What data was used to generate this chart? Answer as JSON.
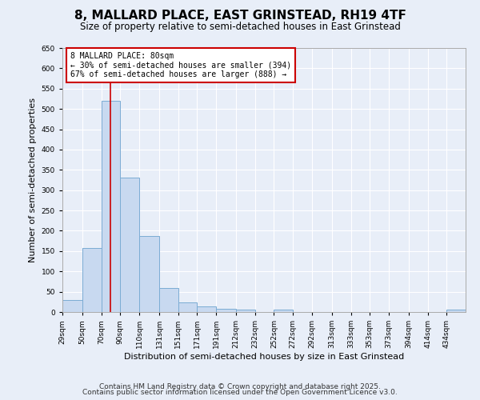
{
  "title": "8, MALLARD PLACE, EAST GRINSTEAD, RH19 4TF",
  "subtitle": "Size of property relative to semi-detached houses in East Grinstead",
  "xlabel": "Distribution of semi-detached houses by size in East Grinstead",
  "ylabel": "Number of semi-detached properties",
  "bins": [
    29,
    50,
    70,
    90,
    110,
    131,
    151,
    171,
    191,
    212,
    232,
    252,
    272,
    292,
    313,
    333,
    353,
    373,
    394,
    414,
    434
  ],
  "counts": [
    30,
    158,
    520,
    330,
    188,
    60,
    23,
    13,
    8,
    5,
    0,
    5,
    0,
    0,
    0,
    0,
    0,
    0,
    0,
    0,
    5
  ],
  "bar_color": "#c8d9f0",
  "bar_edge_color": "#7bacd4",
  "property_size": 80,
  "vline_color": "#cc0000",
  "annotation_text": "8 MALLARD PLACE: 80sqm\n← 30% of semi-detached houses are smaller (394)\n67% of semi-detached houses are larger (888) →",
  "annotation_box_color": "#cc0000",
  "ylim": [
    0,
    650
  ],
  "yticks": [
    0,
    50,
    100,
    150,
    200,
    250,
    300,
    350,
    400,
    450,
    500,
    550,
    600,
    650
  ],
  "tick_labels": [
    "29sqm",
    "50sqm",
    "70sqm",
    "90sqm",
    "110sqm",
    "131sqm",
    "151sqm",
    "171sqm",
    "191sqm",
    "212sqm",
    "232sqm",
    "252sqm",
    "272sqm",
    "292sqm",
    "313sqm",
    "333sqm",
    "353sqm",
    "373sqm",
    "394sqm",
    "414sqm",
    "434sqm"
  ],
  "footer1": "Contains HM Land Registry data © Crown copyright and database right 2025.",
  "footer2": "Contains public sector information licensed under the Open Government Licence v3.0.",
  "bg_color": "#e8eef8",
  "plot_bg_color": "#e8eef8",
  "title_fontsize": 11,
  "subtitle_fontsize": 8.5,
  "xlabel_fontsize": 8,
  "ylabel_fontsize": 8,
  "tick_fontsize": 6.5,
  "annot_fontsize": 7,
  "footer_fontsize": 6.5
}
